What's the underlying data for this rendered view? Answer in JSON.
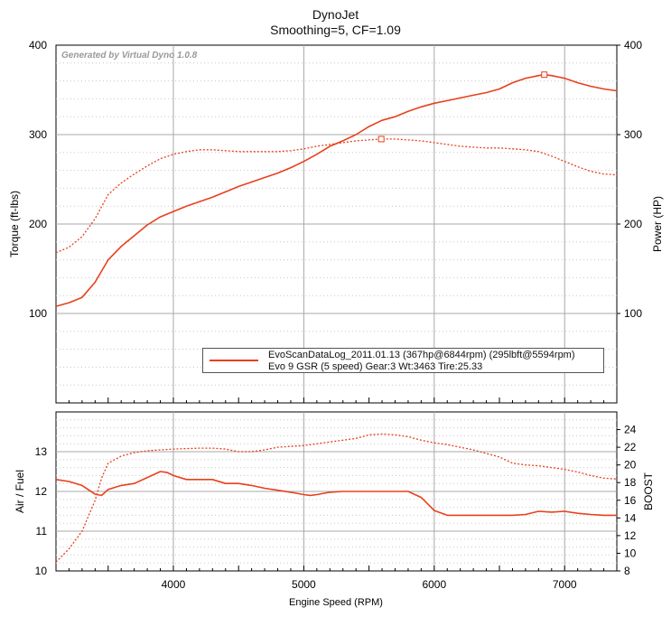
{
  "title": "DynoJet",
  "subtitle": "Smoothing=5, CF=1.09",
  "watermark": "Generated by Virtual Dyno 1.0.8",
  "legend": {
    "line1": "EvoScanDataLog_2011.01.13 (367hp@6844rpm) (295lbft@5594rpm)",
    "line2": "Evo 9 GSR (5 speed) Gear:3 Wt:3463 Tire:25.33"
  },
  "colors": {
    "series": "#e8401c",
    "grid": "#a8a8a8",
    "bg": "#ffffff"
  },
  "chart_data": [
    {
      "type": "line",
      "xlabel": "",
      "ylabel": "Torque (ft-lbs)",
      "ylabel_right": "Power (HP)",
      "xlim": [
        3100,
        7400
      ],
      "ylim": [
        0,
        400
      ],
      "x_ticks": [
        4000,
        5000,
        6000,
        7000
      ],
      "y_ticks": [
        100,
        200,
        300,
        400
      ],
      "legend_position": "bottom-right",
      "grid": true,
      "series": [
        {
          "name": "Power (HP)",
          "style": "solid",
          "x": [
            3100,
            3200,
            3300,
            3400,
            3500,
            3600,
            3700,
            3800,
            3900,
            4000,
            4100,
            4200,
            4300,
            4400,
            4500,
            4600,
            4700,
            4800,
            4900,
            5000,
            5100,
            5200,
            5300,
            5400,
            5500,
            5600,
            5700,
            5800,
            5900,
            6000,
            6100,
            6200,
            6300,
            6400,
            6500,
            6600,
            6700,
            6800,
            6844,
            6900,
            7000,
            7100,
            7200,
            7300,
            7400
          ],
          "values": [
            108,
            112,
            118,
            135,
            160,
            175,
            187,
            199,
            208,
            214,
            220,
            225,
            230,
            236,
            242,
            247,
            252,
            257,
            263,
            270,
            278,
            287,
            293,
            300,
            309,
            316,
            320,
            326,
            331,
            335,
            338,
            341,
            344,
            347,
            351,
            358,
            363,
            366,
            367,
            366,
            363,
            358,
            354,
            351,
            349
          ]
        },
        {
          "name": "Torque (ft-lbs)",
          "style": "dotted",
          "x": [
            3100,
            3200,
            3300,
            3400,
            3500,
            3600,
            3700,
            3800,
            3900,
            4000,
            4100,
            4200,
            4300,
            4400,
            4500,
            4600,
            4700,
            4800,
            4900,
            5000,
            5100,
            5200,
            5300,
            5400,
            5500,
            5594,
            5700,
            5800,
            5900,
            6000,
            6100,
            6200,
            6300,
            6400,
            6500,
            6600,
            6700,
            6800,
            6900,
            7000,
            7100,
            7200,
            7300,
            7400
          ],
          "values": [
            168,
            174,
            186,
            206,
            233,
            246,
            256,
            265,
            273,
            278,
            281,
            283,
            283,
            282,
            281,
            281,
            281,
            281,
            282,
            284,
            287,
            289,
            291,
            293,
            294,
            295,
            295,
            294,
            293,
            291,
            289,
            287,
            286,
            285,
            285,
            284,
            283,
            281,
            276,
            270,
            264,
            259,
            256,
            255
          ]
        },
        {
          "name": "Max power marker",
          "style": "marker",
          "x": [
            6844
          ],
          "values": [
            367
          ]
        },
        {
          "name": "Max torque marker",
          "style": "marker",
          "x": [
            5594
          ],
          "values": [
            295
          ]
        }
      ]
    },
    {
      "type": "line",
      "xlabel": "Engine Speed (RPM)",
      "ylabel": "Air / Fuel",
      "ylabel_right": "BOOST",
      "xlim": [
        3100,
        7400
      ],
      "ylim": [
        10,
        14
      ],
      "ylim_right": [
        8,
        26
      ],
      "x_ticks": [
        4000,
        5000,
        6000,
        7000
      ],
      "y_ticks": [
        10,
        11,
        12,
        13
      ],
      "y_ticks_right": [
        8,
        10,
        12,
        14,
        16,
        18,
        20,
        22,
        24
      ],
      "grid": true,
      "series": [
        {
          "name": "Air / Fuel",
          "style": "solid",
          "axis": "left",
          "x": [
            3100,
            3200,
            3300,
            3400,
            3450,
            3500,
            3600,
            3700,
            3800,
            3900,
            3950,
            4000,
            4100,
            4200,
            4300,
            4400,
            4500,
            4600,
            4700,
            4800,
            4900,
            5000,
            5050,
            5100,
            5200,
            5300,
            5400,
            5500,
            5600,
            5700,
            5800,
            5900,
            6000,
            6100,
            6200,
            6300,
            6400,
            6500,
            6600,
            6700,
            6800,
            6900,
            7000,
            7100,
            7200,
            7300,
            7400
          ],
          "values": [
            12.3,
            12.25,
            12.15,
            11.93,
            11.9,
            12.05,
            12.15,
            12.2,
            12.35,
            12.5,
            12.48,
            12.4,
            12.3,
            12.3,
            12.3,
            12.2,
            12.2,
            12.15,
            12.08,
            12.03,
            11.98,
            11.92,
            11.9,
            11.92,
            11.98,
            12.0,
            12.0,
            12.0,
            12.0,
            12.0,
            12.0,
            11.85,
            11.52,
            11.4,
            11.4,
            11.4,
            11.4,
            11.4,
            11.4,
            11.42,
            11.5,
            11.48,
            11.5,
            11.45,
            11.42,
            11.4,
            11.4
          ]
        },
        {
          "name": "BOOST",
          "style": "dotted",
          "axis": "right",
          "x": [
            3100,
            3200,
            3300,
            3400,
            3450,
            3500,
            3600,
            3700,
            3800,
            3900,
            4000,
            4100,
            4200,
            4300,
            4400,
            4500,
            4600,
            4700,
            4800,
            4900,
            5000,
            5100,
            5200,
            5300,
            5400,
            5500,
            5600,
            5700,
            5800,
            5900,
            6000,
            6100,
            6200,
            6300,
            6400,
            6500,
            6600,
            6700,
            6800,
            6900,
            7000,
            7100,
            7200,
            7300,
            7400
          ],
          "values": [
            9,
            10.5,
            12.5,
            16,
            18.5,
            20.2,
            21,
            21.4,
            21.6,
            21.7,
            21.8,
            21.85,
            21.9,
            21.9,
            21.8,
            21.5,
            21.5,
            21.7,
            22.0,
            22.1,
            22.2,
            22.4,
            22.6,
            22.8,
            23.0,
            23.4,
            23.5,
            23.4,
            23.2,
            22.8,
            22.5,
            22.3,
            22.0,
            21.7,
            21.3,
            20.9,
            20.2,
            20.0,
            19.9,
            19.7,
            19.5,
            19.2,
            18.8,
            18.5,
            18.4
          ]
        }
      ]
    }
  ]
}
